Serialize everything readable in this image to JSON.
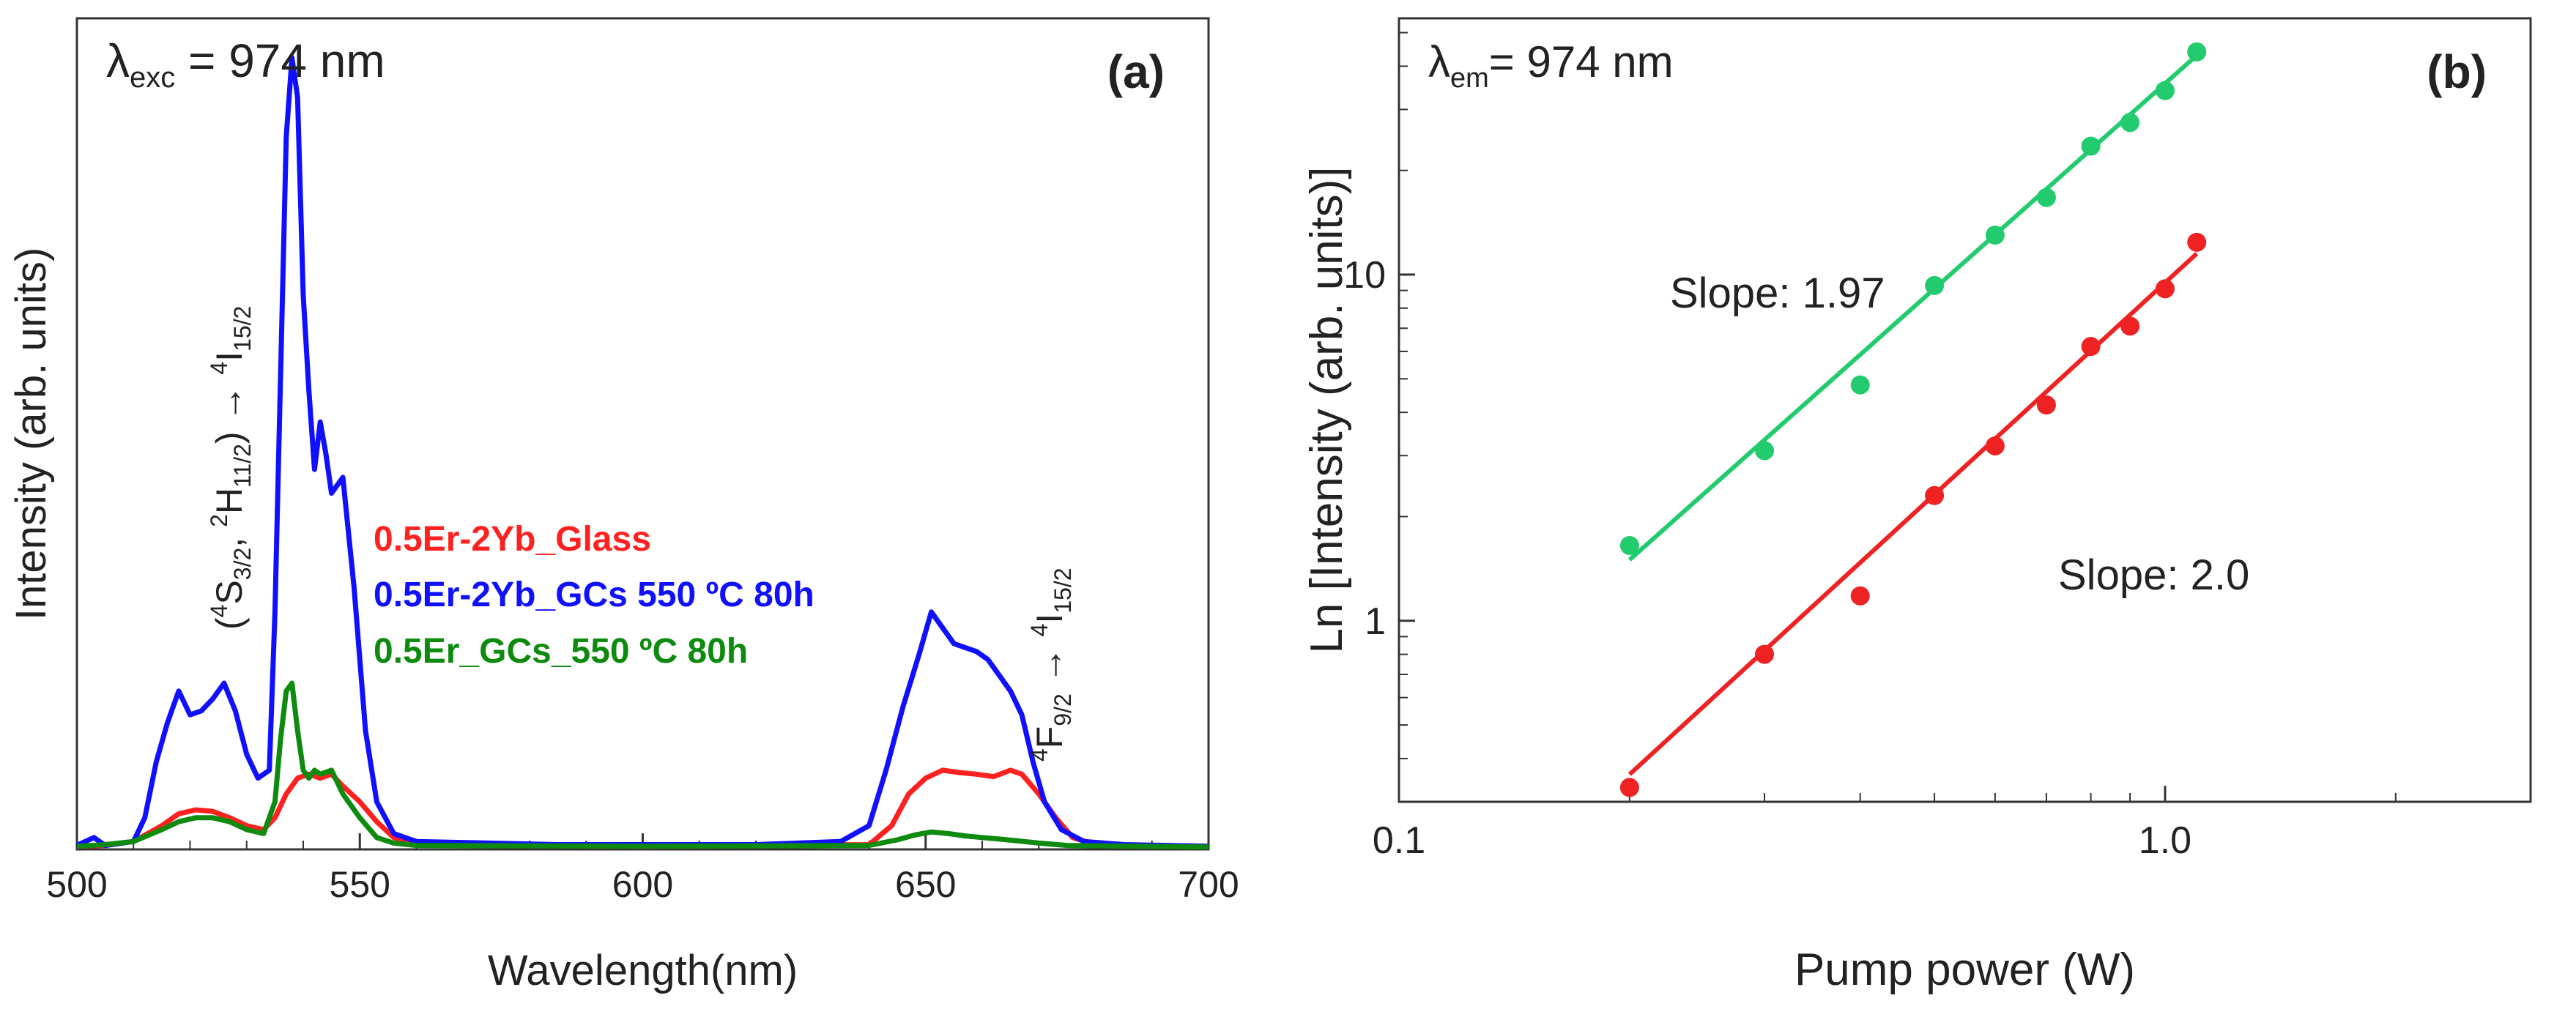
{
  "chart_data": [
    {
      "type": "line",
      "panel_label": "(a)",
      "title_prefix": "λ",
      "title_sub": "exc",
      "title_suffix": " = 974 nm",
      "xlabel": "Wavelength(nm)",
      "ylabel": "Intensity (arb. units)",
      "xlim": [
        500,
        700
      ],
      "ylim": [
        0,
        1.05
      ],
      "x_ticks": [
        500,
        550,
        600,
        650,
        700
      ],
      "x_tick_labels": [
        "500",
        "550",
        "600",
        "650",
        "700"
      ],
      "annotation_green_transition": {
        "parts": [
          "(",
          "4",
          "S",
          "3/2",
          ", ",
          "2",
          "H",
          "11/2",
          ") → ",
          "4",
          "I",
          "15/2"
        ]
      },
      "annotation_red_transition": {
        "parts": [
          "4",
          "F",
          "9/2",
          " → ",
          "4",
          "I",
          "15/2"
        ]
      },
      "series": [
        {
          "name": "0.5Er-2Yb_Glass",
          "color": "#ff2020",
          "points": [
            [
              500,
              0.004
            ],
            [
              505,
              0.005
            ],
            [
              510,
              0.01
            ],
            [
              515,
              0.03
            ],
            [
              518,
              0.045
            ],
            [
              521,
              0.05
            ],
            [
              524,
              0.048
            ],
            [
              527,
              0.04
            ],
            [
              530,
              0.03
            ],
            [
              533,
              0.025
            ],
            [
              535,
              0.04
            ],
            [
              537,
              0.07
            ],
            [
              539,
              0.09
            ],
            [
              541,
              0.095
            ],
            [
              543,
              0.09
            ],
            [
              545,
              0.095
            ],
            [
              547,
              0.08
            ],
            [
              550,
              0.06
            ],
            [
              553,
              0.035
            ],
            [
              556,
              0.015
            ],
            [
              560,
              0.007
            ],
            [
              600,
              0.004
            ],
            [
              640,
              0.006
            ],
            [
              644,
              0.03
            ],
            [
              647,
              0.07
            ],
            [
              650,
              0.09
            ],
            [
              653,
              0.1
            ],
            [
              656,
              0.097
            ],
            [
              659,
              0.095
            ],
            [
              662,
              0.092
            ],
            [
              665,
              0.1
            ],
            [
              667,
              0.095
            ],
            [
              670,
              0.07
            ],
            [
              673,
              0.04
            ],
            [
              676,
              0.015
            ],
            [
              680,
              0.006
            ],
            [
              700,
              0.004
            ]
          ]
        },
        {
          "name": "0.5Er-2Yb_GCs 550 ºC 80h",
          "color": "#1010ff",
          "points": [
            [
              500,
              0.005
            ],
            [
              503,
              0.015
            ],
            [
              505,
              0.005
            ],
            [
              510,
              0.01
            ],
            [
              512,
              0.04
            ],
            [
              514,
              0.11
            ],
            [
              516,
              0.16
            ],
            [
              518,
              0.2
            ],
            [
              520,
              0.17
            ],
            [
              522,
              0.175
            ],
            [
              524,
              0.19
            ],
            [
              526,
              0.21
            ],
            [
              528,
              0.175
            ],
            [
              530,
              0.12
            ],
            [
              532,
              0.09
            ],
            [
              534,
              0.1
            ],
            [
              535,
              0.3
            ],
            [
              536,
              0.6
            ],
            [
              537,
              0.9
            ],
            [
              538,
              1.0
            ],
            [
              539,
              0.95
            ],
            [
              540,
              0.7
            ],
            [
              541,
              0.58
            ],
            [
              542,
              0.48
            ],
            [
              543,
              0.54
            ],
            [
              544,
              0.5
            ],
            [
              545,
              0.45
            ],
            [
              547,
              0.47
            ],
            [
              549,
              0.33
            ],
            [
              551,
              0.15
            ],
            [
              553,
              0.06
            ],
            [
              556,
              0.02
            ],
            [
              560,
              0.01
            ],
            [
              585,
              0.006
            ],
            [
              595,
              0.006
            ],
            [
              620,
              0.006
            ],
            [
              635,
              0.01
            ],
            [
              640,
              0.03
            ],
            [
              643,
              0.1
            ],
            [
              646,
              0.18
            ],
            [
              649,
              0.25
            ],
            [
              651,
              0.3
            ],
            [
              653,
              0.28
            ],
            [
              655,
              0.26
            ],
            [
              657,
              0.255
            ],
            [
              659,
              0.25
            ],
            [
              661,
              0.24
            ],
            [
              663,
              0.22
            ],
            [
              665,
              0.2
            ],
            [
              667,
              0.17
            ],
            [
              669,
              0.11
            ],
            [
              671,
              0.06
            ],
            [
              674,
              0.025
            ],
            [
              678,
              0.01
            ],
            [
              685,
              0.006
            ],
            [
              700,
              0.004
            ]
          ]
        },
        {
          "name": "0.5Er_GCs_550 ºC 80h",
          "color": "#0e8a0e",
          "points": [
            [
              500,
              0.004
            ],
            [
              505,
              0.006
            ],
            [
              510,
              0.01
            ],
            [
              515,
              0.025
            ],
            [
              518,
              0.035
            ],
            [
              521,
              0.04
            ],
            [
              524,
              0.04
            ],
            [
              527,
              0.035
            ],
            [
              530,
              0.025
            ],
            [
              533,
              0.02
            ],
            [
              535,
              0.06
            ],
            [
              536,
              0.14
            ],
            [
              537,
              0.2
            ],
            [
              538,
              0.21
            ],
            [
              539,
              0.15
            ],
            [
              540,
              0.1
            ],
            [
              541,
              0.09
            ],
            [
              542,
              0.1
            ],
            [
              543,
              0.095
            ],
            [
              545,
              0.1
            ],
            [
              547,
              0.07
            ],
            [
              550,
              0.04
            ],
            [
              553,
              0.015
            ],
            [
              556,
              0.008
            ],
            [
              560,
              0.005
            ],
            [
              600,
              0.004
            ],
            [
              640,
              0.005
            ],
            [
              645,
              0.012
            ],
            [
              648,
              0.018
            ],
            [
              651,
              0.022
            ],
            [
              654,
              0.02
            ],
            [
              657,
              0.017
            ],
            [
              660,
              0.015
            ],
            [
              663,
              0.013
            ],
            [
              666,
              0.011
            ],
            [
              670,
              0.008
            ],
            [
              675,
              0.005
            ],
            [
              700,
              0.003
            ]
          ]
        }
      ]
    },
    {
      "type": "scatter",
      "panel_label": "(b)",
      "title_prefix": "λ",
      "title_sub": "em",
      "title_suffix": "= 974 nm",
      "xlabel": "Pump power (W)",
      "ylabel": "Ln [Intensity (arb. units)]",
      "xscale": "log",
      "yscale": "log",
      "xlim": [
        0.1,
        3.0
      ],
      "ylim": [
        0.3,
        55
      ],
      "x_ticks": [
        0.1,
        1.0
      ],
      "x_tick_labels": [
        "0.1",
        "1.0"
      ],
      "y_ticks": [
        1,
        10
      ],
      "y_tick_labels": [
        "1",
        "10"
      ],
      "series": [
        {
          "name": "green",
          "color": "#22cc6e",
          "slope_label": "Slope: 1.97",
          "points": [
            [
              0.2,
              1.65
            ],
            [
              0.3,
              3.1
            ],
            [
              0.4,
              4.8
            ],
            [
              0.5,
              9.3
            ],
            [
              0.6,
              13.0
            ],
            [
              0.7,
              16.7
            ],
            [
              0.8,
              23.5
            ],
            [
              0.9,
              27.5
            ],
            [
              1.0,
              34.0
            ],
            [
              1.1,
              44.0
            ]
          ],
          "fit": {
            "x": [
              0.2,
              1.1
            ],
            "y": [
              1.5,
              43.0
            ]
          }
        },
        {
          "name": "red",
          "color": "#ee2222",
          "slope_label": "Slope: 2.0",
          "points": [
            [
              0.2,
              0.33
            ],
            [
              0.3,
              0.8
            ],
            [
              0.4,
              1.18
            ],
            [
              0.5,
              2.3
            ],
            [
              0.6,
              3.2
            ],
            [
              0.7,
              4.2
            ],
            [
              0.8,
              6.2
            ],
            [
              0.9,
              7.1
            ],
            [
              1.0,
              9.1
            ],
            [
              1.1,
              12.4
            ]
          ],
          "fit": {
            "x": [
              0.2,
              1.1
            ],
            "y": [
              0.36,
              11.5
            ]
          }
        }
      ]
    }
  ]
}
